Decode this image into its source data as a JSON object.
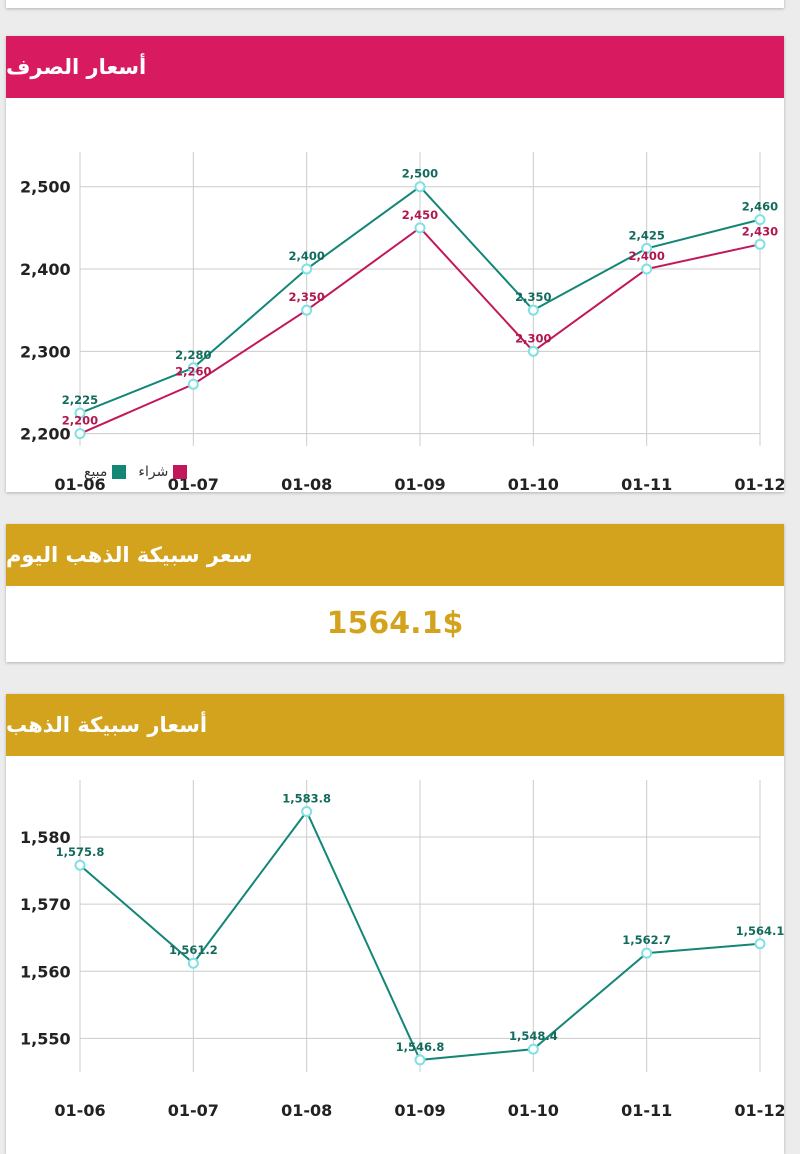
{
  "top_card": {},
  "exchange": {
    "title": "أسعار الصرف",
    "legend": {
      "buy_label": "شراء",
      "sell_label": "مبيع"
    },
    "colors": {
      "buy": "#c2185b",
      "sell": "#138676",
      "header": "#d81b60"
    }
  },
  "gold_today": {
    "title": "سعر سبيكة الذهب اليوم",
    "price": "1564.1$",
    "color": "#d4a31e"
  },
  "gold_prices": {
    "title": "أسعار سبيكة الذهب"
  },
  "chart_data": [
    {
      "type": "line",
      "categories": [
        "01-06",
        "01-07",
        "01-08",
        "01-09",
        "01-10",
        "01-11",
        "01-12"
      ],
      "series": [
        {
          "name": "مبيع",
          "values": [
            2225,
            2280,
            2400,
            2500,
            2350,
            2425,
            2460
          ],
          "labels": [
            "2,225",
            "2,280",
            "2,400",
            "2,500",
            "2,350",
            "2,425",
            "2,460"
          ]
        },
        {
          "name": "شراء",
          "values": [
            2200,
            2260,
            2350,
            2450,
            2300,
            2400,
            2430
          ],
          "labels": [
            "2,200",
            "2,260",
            "2,350",
            "2,450",
            "2,300",
            "2,400",
            "2,430"
          ]
        }
      ],
      "yticks": [
        2200,
        2300,
        2400,
        2500
      ],
      "ytick_labels": [
        "2,200",
        "2,300",
        "2,400",
        "2,500"
      ],
      "ylim": [
        2185,
        2530
      ],
      "grid": true,
      "legend_position": "bottom-left"
    },
    {
      "type": "line",
      "categories": [
        "01-06",
        "01-07",
        "01-08",
        "01-09",
        "01-10",
        "01-11",
        "01-12"
      ],
      "series": [
        {
          "values": [
            1575.8,
            1561.2,
            1583.8,
            1546.8,
            1548.4,
            1562.7,
            1564.1
          ],
          "labels": [
            "1,575.8",
            "1,561.2",
            "1,583.8",
            "1,546.8",
            "1,548.4",
            "1,562.7",
            "1,564.1"
          ]
        }
      ],
      "yticks": [
        1550,
        1560,
        1570,
        1580
      ],
      "ytick_labels": [
        "1,550",
        "1,560",
        "1,570",
        "1,580"
      ],
      "ylim": [
        1545,
        1587
      ],
      "grid": true
    }
  ]
}
